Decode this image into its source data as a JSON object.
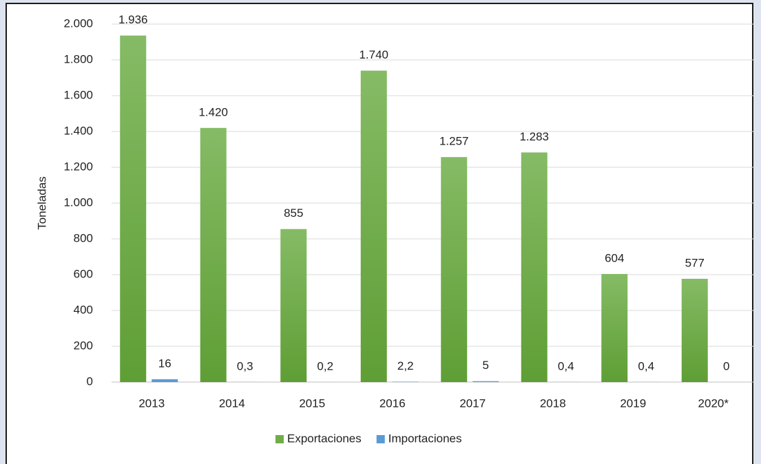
{
  "chart_data": {
    "type": "bar",
    "y_label": "Toneladas",
    "categories": [
      "2013",
      "2014",
      "2015",
      "2016",
      "2017",
      "2018",
      "2019",
      "2020*"
    ],
    "series": [
      {
        "name": "Exportaciones",
        "color": "#70ad47",
        "values": [
          1936,
          1420,
          855,
          1740,
          1257,
          1283,
          604,
          577
        ],
        "value_labels": [
          "1.936",
          "1.420",
          "855",
          "1.740",
          "1.257",
          "1.283",
          "604",
          "577"
        ]
      },
      {
        "name": "Importaciones",
        "color": "#5b9bd5",
        "values": [
          16,
          0.3,
          0.2,
          2.2,
          5,
          0.4,
          0.4,
          0
        ],
        "value_labels": [
          "16",
          "0,3",
          "0,2",
          "2,2",
          "5",
          "0,4",
          "0,4",
          "0"
        ]
      }
    ],
    "ylim": [
      0,
      2000
    ],
    "yticks": [
      0,
      200,
      400,
      600,
      800,
      {
        "value": 1000,
        "label": "1.000"
      },
      {
        "value": 1200,
        "label": "1.200"
      },
      {
        "value": 1400,
        "label": "1.400"
      },
      {
        "value": 1600,
        "label": "1.600"
      },
      {
        "value": 1800,
        "label": "1.800"
      },
      {
        "value": 2000,
        "label": "2.000"
      }
    ],
    "grid": true,
    "legend": "bottom"
  }
}
